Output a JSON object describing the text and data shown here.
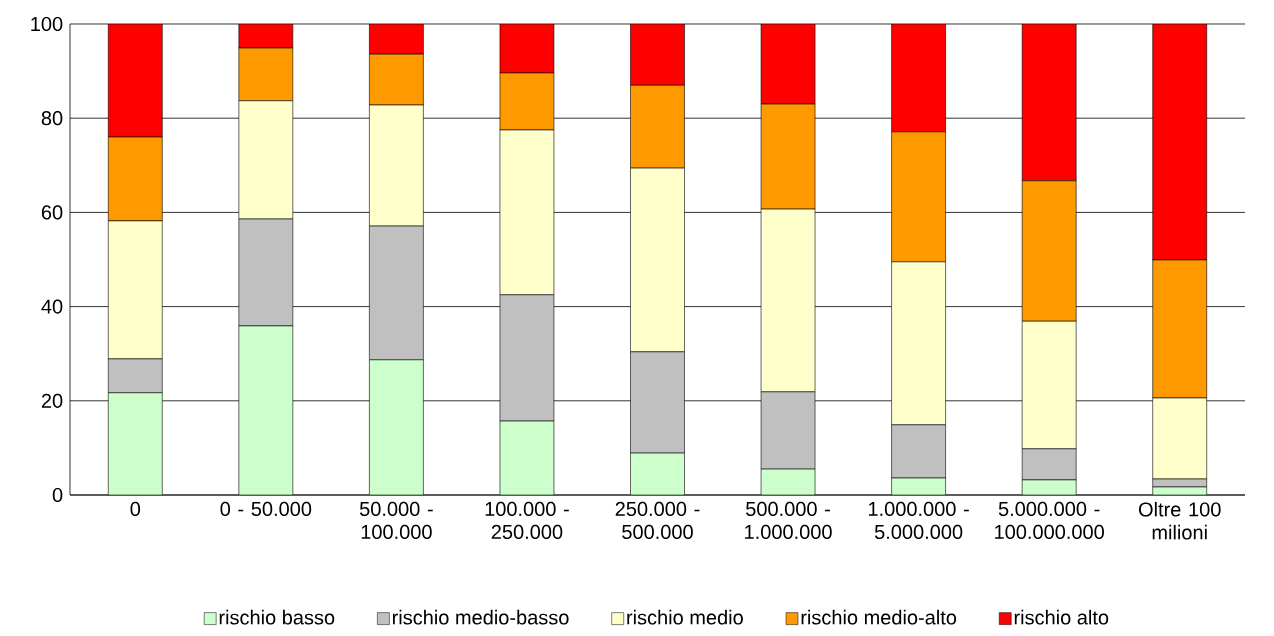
{
  "chart_data": {
    "type": "bar",
    "stacked": true,
    "categories": [
      "0",
      "0 - 50.000",
      "50.000 - 100.000",
      "100.000 - 250.000",
      "250.000 - 500.000",
      "500.000 - 1.000.000",
      "1.000.000 - 5.000.000",
      "5.000.000 - 100.000.000",
      "Oltre 100 milioni"
    ],
    "series": [
      {
        "name": "rischio basso",
        "color": "#ccffcc",
        "values": [
          21.7,
          35.9,
          28.7,
          15.7,
          8.9,
          5.5,
          3.6,
          3.2,
          1.7
        ]
      },
      {
        "name": "rischio medio-basso",
        "color": "#c0c0c0",
        "values": [
          7.2,
          22.7,
          28.4,
          26.8,
          21.5,
          16.4,
          11.3,
          6.6,
          1.7
        ]
      },
      {
        "name": "rischio medio",
        "color": "#ffffcc",
        "values": [
          29.3,
          25.1,
          25.7,
          35.0,
          39.0,
          38.8,
          34.6,
          27.1,
          17.2
        ]
      },
      {
        "name": "rischio medio-alto",
        "color": "#ff9900",
        "values": [
          17.8,
          11.2,
          10.8,
          12.1,
          17.6,
          22.3,
          27.6,
          29.8,
          29.3
        ]
      },
      {
        "name": "rischio alto",
        "color": "#ff0000",
        "values": [
          24.0,
          5.1,
          6.4,
          10.4,
          13.0,
          17.0,
          22.9,
          33.3,
          50.1
        ]
      }
    ],
    "ylim": [
      0,
      100
    ],
    "yticks": [
      0,
      20,
      40,
      60,
      80,
      100
    ],
    "grid": "y",
    "legend": "bottom"
  }
}
